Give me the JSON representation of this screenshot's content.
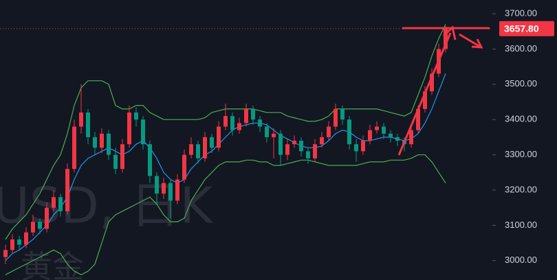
{
  "chart_data": {
    "type": "candlestick",
    "ylim": [
      2945,
      3739
    ],
    "yticks": [
      {
        "value": 3000,
        "label": "3000.00"
      },
      {
        "value": 3100,
        "label": "3100.00"
      },
      {
        "value": 3200,
        "label": "3200.00"
      },
      {
        "value": 3300,
        "label": "3300.00"
      },
      {
        "value": 3400,
        "label": "3400.00"
      },
      {
        "value": 3500,
        "label": "3500.00"
      },
      {
        "value": 3600,
        "label": "3600.00"
      },
      {
        "value": 3700,
        "label": "3700.00"
      }
    ],
    "grid": false,
    "up_color": "#f23645",
    "down_color": "#089981",
    "watermark": [
      "USD, 日K",
      "黄金"
    ],
    "last_price": {
      "value": 3657.8,
      "label": "3657.80",
      "color": "#f23645"
    },
    "candles": {
      "open": [
        3010,
        3030,
        3060,
        3045,
        3080,
        3110,
        3090,
        3150,
        3180,
        3140,
        3260,
        3380,
        3420,
        3350,
        3320,
        3360,
        3300,
        3260,
        3330,
        3420,
        3400,
        3330,
        3240,
        3190,
        3220,
        3170,
        3230,
        3300,
        3330,
        3290,
        3350,
        3320,
        3380,
        3410,
        3370,
        3390,
        3430,
        3400,
        3380,
        3350,
        3360,
        3300,
        3330,
        3340,
        3310,
        3290,
        3330,
        3350,
        3380,
        3430,
        3400,
        3330,
        3310,
        3340,
        3370,
        3380,
        3360,
        3350,
        3340,
        3330,
        3370,
        3430,
        3480,
        3530,
        3600
      ],
      "high": [
        3045,
        3075,
        3070,
        3095,
        3130,
        3120,
        3165,
        3200,
        3190,
        3275,
        3400,
        3500,
        3430,
        3365,
        3375,
        3370,
        3320,
        3345,
        3440,
        3435,
        3410,
        3340,
        3250,
        3235,
        3230,
        3245,
        3315,
        3350,
        3340,
        3365,
        3360,
        3395,
        3445,
        3420,
        3405,
        3445,
        3440,
        3410,
        3390,
        3375,
        3370,
        3345,
        3355,
        3350,
        3320,
        3345,
        3365,
        3395,
        3445,
        3440,
        3410,
        3345,
        3355,
        3385,
        3395,
        3390,
        3370,
        3360,
        3350,
        3380,
        3440,
        3495,
        3545,
        3615,
        3665
      ],
      "low": [
        2990,
        3020,
        3030,
        3035,
        3070,
        3075,
        3080,
        3140,
        3125,
        3130,
        3250,
        3360,
        3330,
        3300,
        3305,
        3285,
        3245,
        3250,
        3320,
        3380,
        3315,
        3220,
        3160,
        3175,
        3120,
        3160,
        3220,
        3290,
        3275,
        3280,
        3305,
        3310,
        3370,
        3355,
        3360,
        3380,
        3385,
        3365,
        3335,
        3290,
        3270,
        3285,
        3320,
        3295,
        3275,
        3280,
        3320,
        3340,
        3370,
        3385,
        3315,
        3280,
        3300,
        3330,
        3360,
        3345,
        3335,
        3325,
        3310,
        3320,
        3360,
        3420,
        3470,
        3520,
        3590
      ],
      "close": [
        3030,
        3060,
        3045,
        3080,
        3110,
        3090,
        3150,
        3180,
        3140,
        3260,
        3380,
        3420,
        3350,
        3320,
        3360,
        3300,
        3260,
        3330,
        3420,
        3400,
        3330,
        3240,
        3190,
        3220,
        3170,
        3230,
        3300,
        3330,
        3290,
        3350,
        3320,
        3380,
        3410,
        3370,
        3390,
        3430,
        3400,
        3380,
        3350,
        3360,
        3300,
        3330,
        3340,
        3310,
        3290,
        3330,
        3350,
        3380,
        3430,
        3400,
        3330,
        3310,
        3340,
        3370,
        3380,
        3360,
        3350,
        3340,
        3330,
        3370,
        3430,
        3480,
        3530,
        3600,
        3657.8
      ]
    },
    "bands": {
      "color": "#4caf50",
      "upper": [
        3060,
        3090,
        3110,
        3130,
        3160,
        3190,
        3230,
        3270,
        3300,
        3360,
        3440,
        3490,
        3510,
        3510,
        3510,
        3500,
        3440,
        3430,
        3430,
        3440,
        3440,
        3420,
        3410,
        3400,
        3400,
        3400,
        3400,
        3400,
        3400,
        3405,
        3420,
        3425,
        3430,
        3430,
        3430,
        3430,
        3430,
        3425,
        3420,
        3420,
        3420,
        3410,
        3405,
        3400,
        3395,
        3395,
        3400,
        3410,
        3430,
        3430,
        3430,
        3430,
        3430,
        3430,
        3430,
        3425,
        3420,
        3415,
        3410,
        3420,
        3470,
        3520,
        3580,
        3630,
        3670
      ],
      "lower": [
        2960,
        2970,
        2980,
        2990,
        3000,
        3010,
        3020,
        3030,
        3020,
        2990,
        2970,
        2960,
        2970,
        2990,
        3050,
        3110,
        3130,
        3140,
        3150,
        3160,
        3170,
        3180,
        3160,
        3130,
        3110,
        3110,
        3120,
        3170,
        3200,
        3230,
        3250,
        3270,
        3280,
        3280,
        3280,
        3285,
        3285,
        3280,
        3280,
        3270,
        3270,
        3275,
        3280,
        3285,
        3285,
        3280,
        3275,
        3270,
        3270,
        3270,
        3270,
        3270,
        3275,
        3280,
        3280,
        3280,
        3285,
        3285,
        3285,
        3290,
        3300,
        3300,
        3280,
        3250,
        3220
      ]
    },
    "ma": {
      "color": "#2196f3",
      "values": [
        3000,
        3020,
        3030,
        3045,
        3060,
        3080,
        3100,
        3130,
        3150,
        3180,
        3230,
        3270,
        3290,
        3300,
        3310,
        3320,
        3310,
        3300,
        3310,
        3330,
        3340,
        3320,
        3290,
        3250,
        3230,
        3220,
        3230,
        3260,
        3280,
        3300,
        3310,
        3330,
        3350,
        3370,
        3380,
        3385,
        3390,
        3390,
        3385,
        3370,
        3355,
        3345,
        3335,
        3325,
        3320,
        3320,
        3325,
        3340,
        3360,
        3370,
        3365,
        3350,
        3340,
        3340,
        3345,
        3350,
        3350,
        3345,
        3340,
        3345,
        3360,
        3390,
        3430,
        3480,
        3530
      ]
    }
  }
}
